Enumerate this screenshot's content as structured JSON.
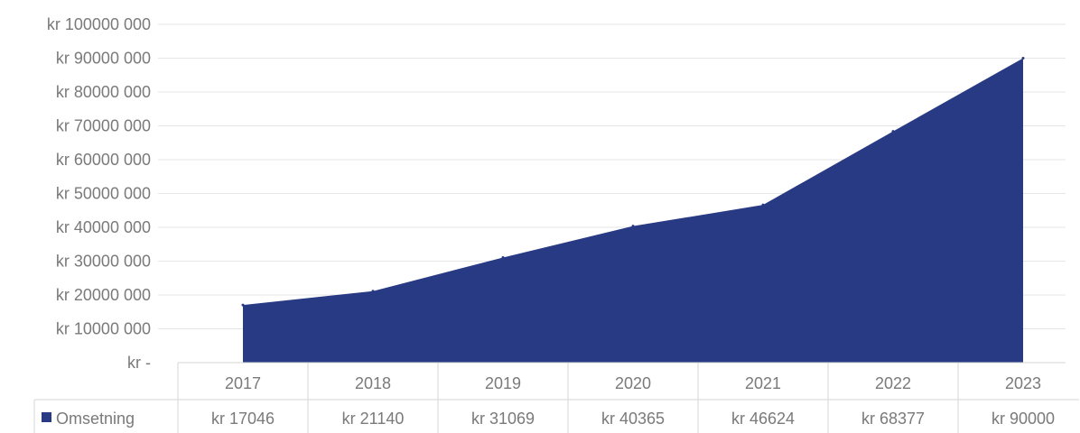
{
  "chart_data": {
    "type": "area",
    "title": "",
    "xlabel": "",
    "ylabel": "",
    "categories": [
      "2017",
      "2018",
      "2019",
      "2020",
      "2021",
      "2022",
      "2023"
    ],
    "series": [
      {
        "name": "Omsetning",
        "values": [
          17046000,
          21140000,
          31069000,
          40365000,
          46624000,
          68377000,
          90000000
        ],
        "table_labels": [
          "kr 17046",
          "kr 21140",
          "kr 31069",
          "kr 40365",
          "kr 46624",
          "kr 68377",
          "kr 90000"
        ],
        "color": "#283a84"
      }
    ],
    "ylim": [
      0,
      100000000
    ],
    "y_ticks": [
      {
        "value": 0,
        "label": "kr -"
      },
      {
        "value": 10000000,
        "label": "kr 10000 000"
      },
      {
        "value": 20000000,
        "label": "kr 20000 000"
      },
      {
        "value": 30000000,
        "label": "kr 30000 000"
      },
      {
        "value": 40000000,
        "label": "kr 40000 000"
      },
      {
        "value": 50000000,
        "label": "kr 50000 000"
      },
      {
        "value": 60000000,
        "label": "kr 60000 000"
      },
      {
        "value": 70000000,
        "label": "kr 70000 000"
      },
      {
        "value": 80000000,
        "label": "kr 80000 000"
      },
      {
        "value": 90000000,
        "label": "kr 90000 000"
      },
      {
        "value": 100000000,
        "label": "kr 100000 000"
      }
    ],
    "grid": true,
    "legend": "data-table"
  }
}
